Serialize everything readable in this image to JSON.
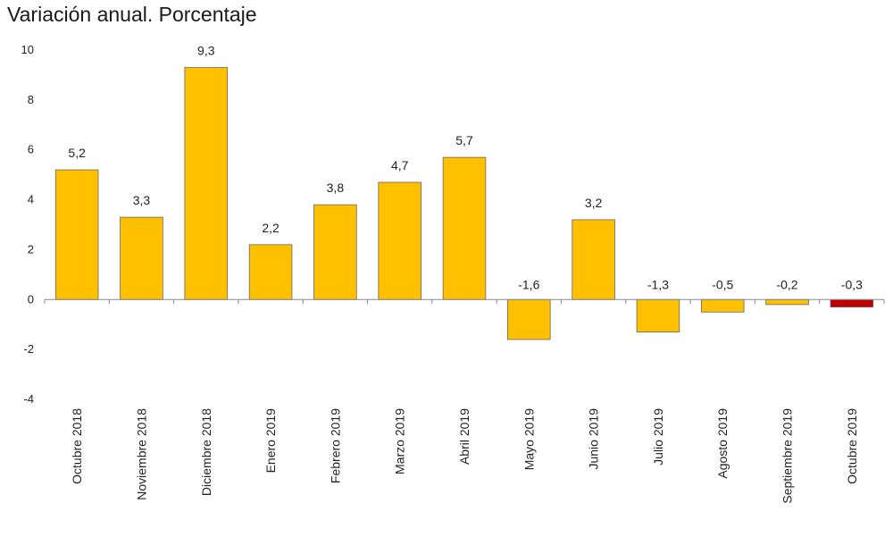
{
  "chart_data": {
    "type": "bar",
    "title": "Variación anual. Porcentaje",
    "xlabel": "",
    "ylabel": "",
    "ylim": [
      -4,
      10
    ],
    "yticks": [
      10,
      8,
      6,
      4,
      2,
      0,
      -2,
      -4
    ],
    "grid": false,
    "legend": "none",
    "categories": [
      "Octubre 2018",
      "Noviembre 2018",
      "Diciembre 2018",
      "Enero 2019",
      "Febrero 2019",
      "Marzo 2019",
      "Abril 2019",
      "Mayo 2019",
      "Junio 2019",
      "Julio 2019",
      "Agosto 2019",
      "Septiembre 2019",
      "Octubre 2019"
    ],
    "values": [
      5.2,
      3.3,
      9.3,
      2.2,
      3.8,
      4.7,
      5.7,
      -1.6,
      3.2,
      -1.3,
      -0.5,
      -0.2,
      -0.3
    ],
    "data_labels": [
      "5,2",
      "3,3",
      "9,3",
      "2,2",
      "3,8",
      "4,7",
      "5,7",
      "-1,6",
      "3,2",
      "-1,3",
      "-0,5",
      "-0,2",
      "-0,3"
    ],
    "colors": {
      "default": "#FFC000",
      "highlight": "#C00000",
      "border": "#666666",
      "axis": "#888888"
    },
    "highlight_index": 12
  }
}
